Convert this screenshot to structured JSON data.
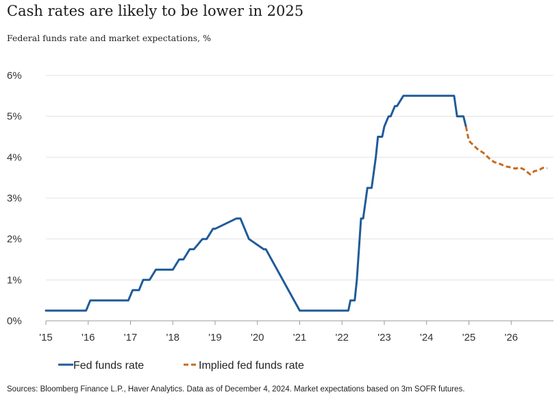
{
  "title": "Cash rates are likely to be lower in 2025",
  "subtitle": "Federal funds rate and market expectations, %",
  "source": "Sources: Bloomberg Finance L.P., Haver Analytics. Data as of December 4, 2024. Market expectations based on 3m SOFR futures.",
  "chart_data": {
    "type": "line",
    "title": "Cash rates are likely to be lower in 2025",
    "subtitle": "Federal funds rate and market expectations, %",
    "xlim": [
      2015,
      2027.0
    ],
    "ylim": [
      0,
      6
    ],
    "yticks": [
      0,
      1,
      2,
      3,
      4,
      5,
      6
    ],
    "ytick_labels": [
      "0%",
      "1%",
      "2%",
      "3%",
      "4%",
      "5%",
      "6%"
    ],
    "xticks": [
      2015,
      2016,
      2017,
      2018,
      2019,
      2020,
      2021,
      2022,
      2023,
      2024,
      2025,
      2026
    ],
    "xtick_labels": [
      "'15",
      "'16",
      "'17",
      "'18",
      "'19",
      "'20",
      "'21",
      "'22",
      "'23",
      "'24",
      "'25",
      "'26"
    ],
    "grid": true,
    "legend_position": "bottom-left",
    "colors": {
      "fed": "#1f5b9a",
      "implied": "#c86a1c"
    },
    "series": [
      {
        "name": "Fed funds rate",
        "style": "solid",
        "x": [
          2015.0,
          2015.95,
          2016.05,
          2016.95,
          2017.05,
          2017.2,
          2017.3,
          2017.45,
          2017.6,
          2017.9,
          2018.0,
          2018.15,
          2018.25,
          2018.4,
          2018.5,
          2018.7,
          2018.8,
          2018.95,
          2019.0,
          2019.5,
          2019.6,
          2019.7,
          2019.8,
          2020.15,
          2020.2,
          2021.0,
          2022.0,
          2022.15,
          2022.2,
          2022.3,
          2022.35,
          2022.45,
          2022.5,
          2022.6,
          2022.7,
          2022.8,
          2022.85,
          2022.95,
          2023.0,
          2023.1,
          2023.15,
          2023.25,
          2023.3,
          2023.45,
          2023.55,
          2024.0,
          2024.65,
          2024.72,
          2024.8,
          2024.87,
          2024.93
        ],
        "y": [
          0.25,
          0.25,
          0.5,
          0.5,
          0.75,
          0.75,
          1.0,
          1.0,
          1.25,
          1.25,
          1.25,
          1.5,
          1.5,
          1.75,
          1.75,
          2.0,
          2.0,
          2.25,
          2.25,
          2.5,
          2.5,
          2.25,
          2.0,
          1.75,
          1.75,
          0.25,
          0.25,
          0.25,
          0.5,
          0.5,
          1.0,
          2.5,
          2.5,
          3.25,
          3.25,
          4.0,
          4.5,
          4.5,
          4.75,
          5.0,
          5.0,
          5.25,
          5.25,
          5.5,
          5.5,
          5.5,
          5.5,
          5.0,
          5.0,
          5.0,
          4.75
        ]
      },
      {
        "name": "Implied fed funds rate",
        "style": "dashed",
        "x": [
          2024.93,
          2025.0,
          2025.1,
          2025.2,
          2025.35,
          2025.5,
          2025.6,
          2025.75,
          2025.85,
          2026.0,
          2026.1,
          2026.2,
          2026.3,
          2026.45,
          2026.55,
          2026.65,
          2026.75,
          2026.85
        ],
        "y": [
          4.75,
          4.4,
          4.3,
          4.2,
          4.1,
          3.95,
          3.88,
          3.83,
          3.78,
          3.75,
          3.72,
          3.75,
          3.7,
          3.58,
          3.66,
          3.68,
          3.74,
          3.73
        ]
      }
    ]
  }
}
